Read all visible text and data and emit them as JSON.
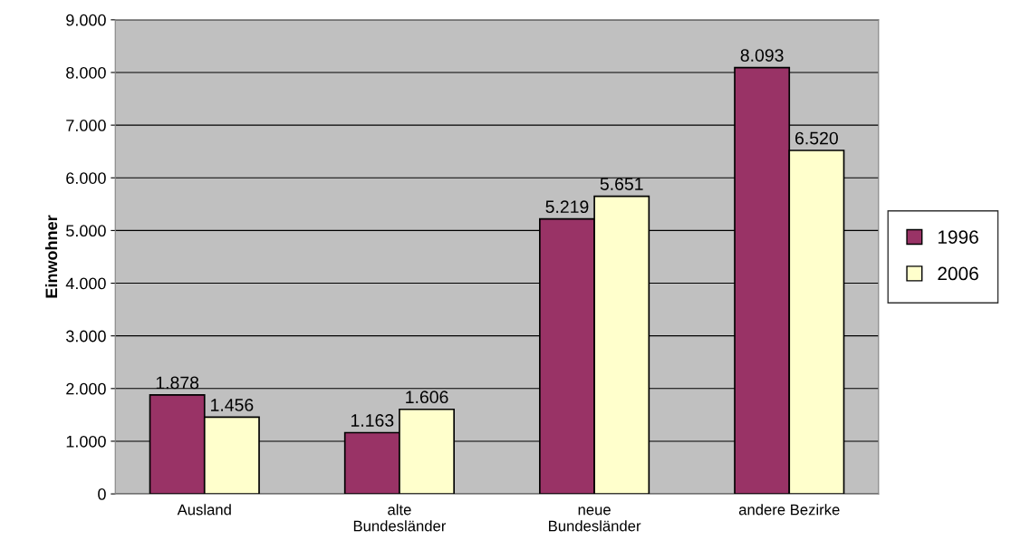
{
  "chart_data": {
    "type": "bar",
    "ylabel": "Einwohner",
    "categories": [
      "Ausland",
      "alte\nBundesländer",
      "neue\nBundesländer",
      "andere Bezirke"
    ],
    "series": [
      {
        "name": "1996",
        "color": "#993366",
        "values": [
          1878,
          1163,
          5219,
          8093
        ],
        "value_labels": [
          "1.878",
          "1.163",
          "5.219",
          "8.093"
        ]
      },
      {
        "name": "2006",
        "color": "#ffffcc",
        "values": [
          1456,
          1606,
          5651,
          6520
        ],
        "value_labels": [
          "1.456",
          "1.606",
          "5.651",
          "6.520"
        ]
      }
    ],
    "ylim": [
      0,
      9000
    ],
    "yticks": [
      0,
      {
        "value": 1000,
        "label": "1.000"
      },
      {
        "value": 2000,
        "label": "2.000"
      },
      {
        "value": 3000,
        "label": "3.000"
      },
      {
        "value": 4000,
        "label": "4.000"
      },
      {
        "value": 5000,
        "label": "5.000"
      },
      {
        "value": 6000,
        "label": "6.000"
      },
      {
        "value": 7000,
        "label": "7.000"
      },
      {
        "value": 8000,
        "label": "8.000"
      },
      {
        "value": 9000,
        "label": "9.000"
      }
    ],
    "grid": "y",
    "legend": "right"
  }
}
